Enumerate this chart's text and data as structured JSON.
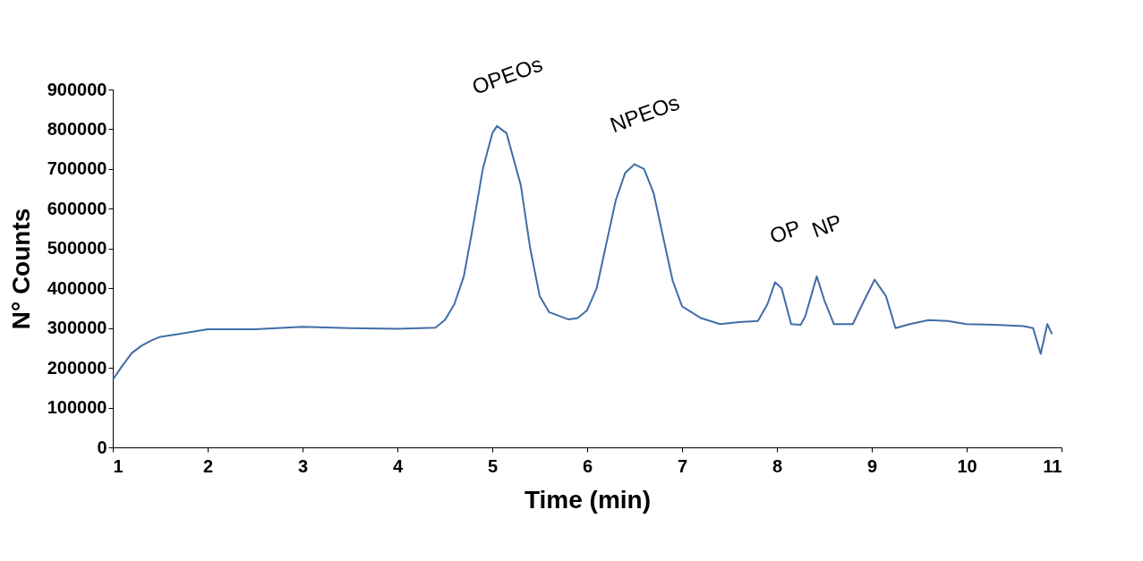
{
  "chart_data": {
    "type": "line",
    "xlabel": "Time (min)",
    "ylabel": "N° Counts",
    "xlim": [
      1,
      11
    ],
    "xticks": [
      1,
      2,
      3,
      4,
      5,
      6,
      7,
      8,
      9,
      10,
      11
    ],
    "ylim": [
      0,
      900000
    ],
    "yticks": [
      0,
      100000,
      200000,
      300000,
      400000,
      500000,
      600000,
      700000,
      800000,
      900000
    ],
    "grid": false,
    "marker": "none",
    "line_style": "solid",
    "series": [
      {
        "color": "#3f6ea6",
        "x": [
          1,
          1.1,
          1.2,
          1.3,
          1.4,
          1.5,
          1.7,
          2,
          2.5,
          3,
          3.5,
          4,
          4.4,
          4.5,
          4.6,
          4.7,
          4.8,
          4.9,
          5.0,
          5.05,
          5.15,
          5.3,
          5.4,
          5.5,
          5.6,
          5.8,
          5.9,
          6.0,
          6.1,
          6.2,
          6.3,
          6.4,
          6.5,
          6.6,
          6.7,
          6.8,
          6.9,
          7.0,
          7.2,
          7.4,
          7.6,
          7.8,
          7.9,
          7.98,
          8.05,
          8.15,
          8.25,
          8.3,
          8.42,
          8.5,
          8.6,
          8.8,
          8.9,
          9.03,
          9.15,
          9.25,
          9.4,
          9.6,
          9.8,
          10.0,
          10.3,
          10.6,
          10.7,
          10.78,
          10.85,
          10.9
        ],
        "values": [
          170000,
          205000,
          237000,
          255000,
          268000,
          278000,
          285000,
          297000,
          297000,
          303000,
          300000,
          298000,
          301000,
          320000,
          360000,
          430000,
          560000,
          700000,
          790000,
          808000,
          790000,
          660000,
          500000,
          380000,
          340000,
          322000,
          325000,
          345000,
          400000,
          510000,
          620000,
          690000,
          712000,
          700000,
          640000,
          530000,
          420000,
          355000,
          325000,
          310000,
          315000,
          318000,
          360000,
          415000,
          400000,
          310000,
          308000,
          330000,
          430000,
          370000,
          310000,
          310000,
          360000,
          422000,
          380000,
          300000,
          310000,
          320000,
          318000,
          310000,
          308000,
          305000,
          300000,
          235000,
          310000,
          285000
        ]
      }
    ],
    "annotations": [
      {
        "text": "OPEOs",
        "x": 5.05,
        "y": 808000
      },
      {
        "text": "NPEOs",
        "x": 6.5,
        "y": 712000
      },
      {
        "text": "OP",
        "x": 7.98,
        "y": 415000
      },
      {
        "text": "NP",
        "x": 8.42,
        "y": 430000
      }
    ]
  }
}
